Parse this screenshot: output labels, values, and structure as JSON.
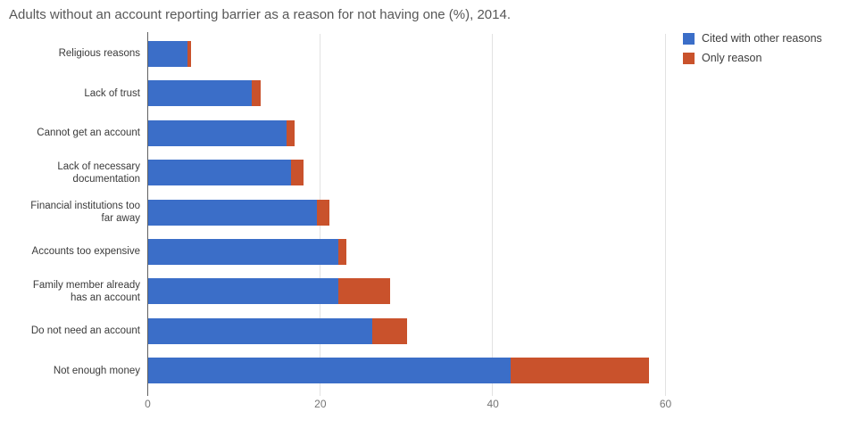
{
  "title": "Adults without an account reporting barrier as a reason for not having one (%), 2014.",
  "chart_data": {
    "type": "bar",
    "orientation": "horizontal",
    "stacked": true,
    "title": "Adults without an account reporting barrier as a reason for not having one (%), 2014.",
    "categories": [
      "Religious reasons",
      "Lack of trust",
      "Cannot get an account",
      "Lack of necessary\ndocumentation",
      "Financial institutions too\nfar away",
      "Accounts too expensive",
      "Family member already\nhas an account",
      "Do not need an account",
      "Not enough money"
    ],
    "series": [
      {
        "name": "Cited with other reasons",
        "color": "#3b6ec8",
        "values": [
          4.5,
          12,
          16,
          16.5,
          19.5,
          22,
          22,
          26,
          42
        ]
      },
      {
        "name": "Only reason",
        "color": "#c9522c",
        "values": [
          0.5,
          1,
          1,
          1.5,
          1.5,
          1,
          6,
          4,
          16
        ]
      }
    ],
    "x_ticks": [
      0,
      20,
      40,
      60
    ],
    "xlim": [
      0,
      60
    ],
    "xlabel": "",
    "ylabel": "",
    "grid": true,
    "legend_position": "top-right"
  }
}
